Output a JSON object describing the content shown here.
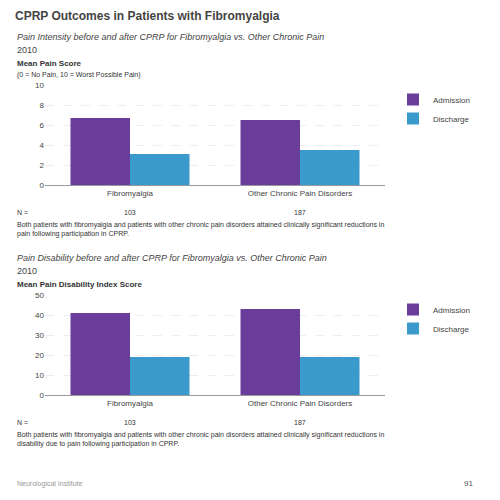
{
  "title": "CPRP Outcomes in Patients with Fibromyalgia",
  "annotations": [
    "Neurological Institute",
    "91"
  ],
  "chart_data": [
    {
      "type": "bar",
      "title": "Pain Intensity before and after CPRP for Fibromyalgia vs. Other Chronic Pain",
      "subtitle": "2010",
      "ylabel": "Mean Pain Score\n(0 = No Pain, 10 = Worst Possible Pain)",
      "categories": [
        "Fibromyalgia",
        "Other Chronic Pain Disorders"
      ],
      "series": [
        {
          "name": "Admission",
          "color": "#6A3D9A",
          "values": [
            6.7,
            6.5
          ]
        },
        {
          "name": "Discharge",
          "color": "#3A9ACC",
          "values": [
            3.1,
            3.5
          ]
        }
      ],
      "ylim": [
        0,
        10
      ],
      "yticks": [
        0,
        2,
        4,
        6,
        8,
        10
      ],
      "grid": true,
      "legend": "right",
      "n_label": "N =",
      "n_values": [
        103,
        187
      ],
      "annotations": [
        "Both patients with fibromyalgia and patients with other chronic pain disorders attained clinically significant reductions in\npain following participation in CPRP."
      ]
    },
    {
      "type": "bar",
      "title": "Pain Disability before and after CPRP for Fibromyalgia vs. Other Chronic Pain",
      "subtitle": "2010",
      "ylabel": "Mean Pain Disability Index Score",
      "categories": [
        "Fibromyalgia",
        "Other Chronic Pain Disorders"
      ],
      "series": [
        {
          "name": "Admission",
          "color": "#6A3D9A",
          "values": [
            41,
            43
          ]
        },
        {
          "name": "Discharge",
          "color": "#3A9ACC",
          "values": [
            19,
            19
          ]
        }
      ],
      "ylim": [
        0,
        50
      ],
      "yticks": [
        0,
        10,
        20,
        30,
        40,
        50
      ],
      "grid": true,
      "legend": "right",
      "n_label": "N =",
      "n_values": [
        103,
        187
      ],
      "annotations": [
        "Both patients with fibromyalgia and patients with other chronic pain disorders attained clinically significant reductions in\ndisability due to pain following participation in CPRP."
      ]
    }
  ]
}
